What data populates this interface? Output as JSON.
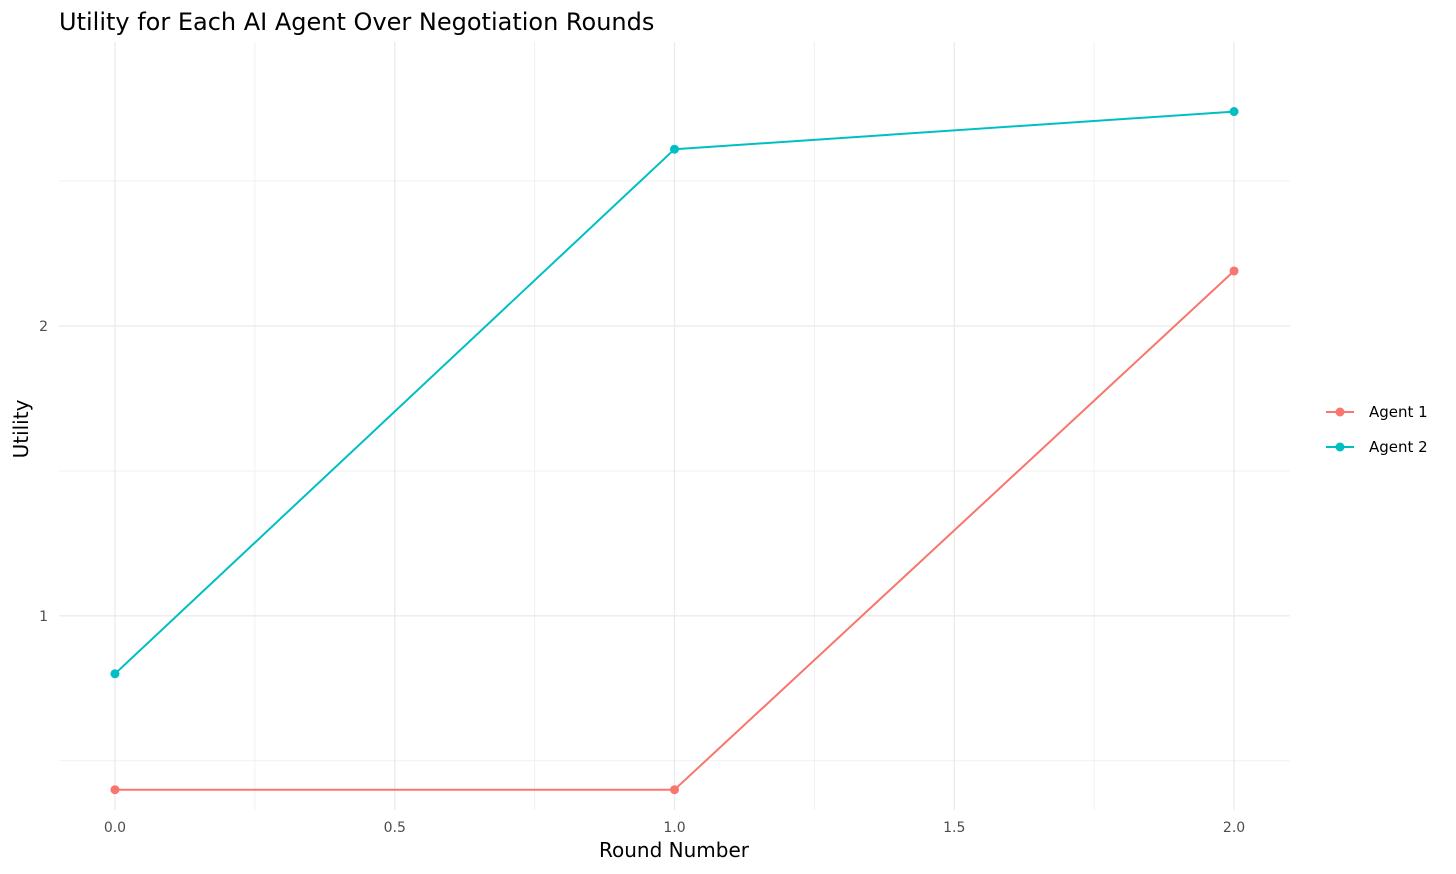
{
  "chart_data": {
    "type": "line",
    "title": "Utility for Each AI Agent Over Negotiation Rounds",
    "xlabel": "Round Number",
    "ylabel": "Utility",
    "x": [
      0.0,
      1.0,
      2.0
    ],
    "xlim": [
      -0.1,
      2.1
    ],
    "ylim": [
      0.33,
      2.98
    ],
    "x_ticks": [
      0.0,
      0.5,
      1.0,
      1.5,
      2.0
    ],
    "x_tick_labels": [
      "0.0",
      "0.5",
      "1.0",
      "1.5",
      "2.0"
    ],
    "y_ticks": [
      1,
      2
    ],
    "y_tick_labels": [
      "1",
      "2"
    ],
    "x_minor": [
      0.25,
      0.75,
      1.25,
      1.75
    ],
    "y_minor": [
      0.5,
      1.5,
      2.5
    ],
    "grid": true,
    "legend_position": "right",
    "series": [
      {
        "name": "Agent 1",
        "color": "#F8766D",
        "values": [
          0.4,
          0.4,
          2.19
        ]
      },
      {
        "name": "Agent 2",
        "color": "#00BFC4",
        "values": [
          0.8,
          2.61,
          2.74
        ]
      }
    ]
  }
}
